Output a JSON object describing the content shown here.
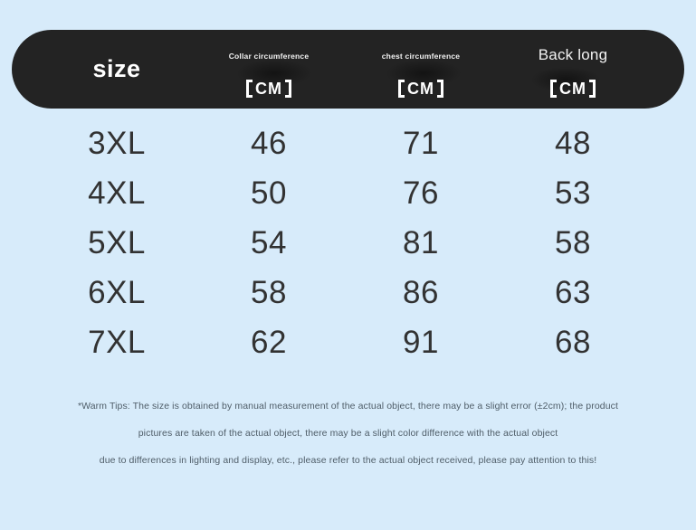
{
  "colors": {
    "background": "#d7ebfa",
    "header_bg": "#232323",
    "header_text": "#ffffff",
    "body_text": "#323232",
    "tips_text": "#4f5d68"
  },
  "table": {
    "header": {
      "size_label": "size",
      "cm_label": "CM",
      "cm_bracketed": "【CM】",
      "columns": [
        {
          "sub": "Collar circumference",
          "cm": "CM"
        },
        {
          "sub": "chest circumference",
          "cm": "CM"
        },
        {
          "sub": "Back long",
          "cm": "CM"
        }
      ]
    },
    "rows": [
      {
        "size": "3XL",
        "collar": "46",
        "chest": "71",
        "back": "48"
      },
      {
        "size": "4XL",
        "collar": "50",
        "chest": "76",
        "back": "53"
      },
      {
        "size": "5XL",
        "collar": "54",
        "chest": "81",
        "back": "58"
      },
      {
        "size": "6XL",
        "collar": "58",
        "chest": "86",
        "back": "63"
      },
      {
        "size": "7XL",
        "collar": "62",
        "chest": "91",
        "back": "68"
      }
    ]
  },
  "tips": {
    "line1": "*Warm Tips: The size is obtained by manual measurement of the actual object, there may be a slight error (±2cm); the product",
    "line2": "pictures are taken of the actual object, there may be a slight color difference with the actual object",
    "line3": "due to differences in lighting and display, etc., please refer to the actual object received, please pay attention to this!"
  },
  "chart_data": {
    "type": "table",
    "title": "size",
    "columns": [
      "size",
      "Collar circumference 【CM】",
      "chest circumference 【CM】",
      "Back long 【CM】"
    ],
    "rows": [
      [
        "3XL",
        46,
        71,
        48
      ],
      [
        "4XL",
        50,
        76,
        53
      ],
      [
        "5XL",
        54,
        81,
        58
      ],
      [
        "6XL",
        58,
        86,
        63
      ],
      [
        "7XL",
        62,
        91,
        68
      ]
    ],
    "units": "CM",
    "notes": "*Warm Tips: The size is obtained by manual measurement of the actual object, there may be a slight error (±2cm); the product pictures are taken of the actual object, there may be a slight color difference with the actual object due to differences in lighting and display, etc., please refer to the actual object received, please pay attention to this!"
  }
}
